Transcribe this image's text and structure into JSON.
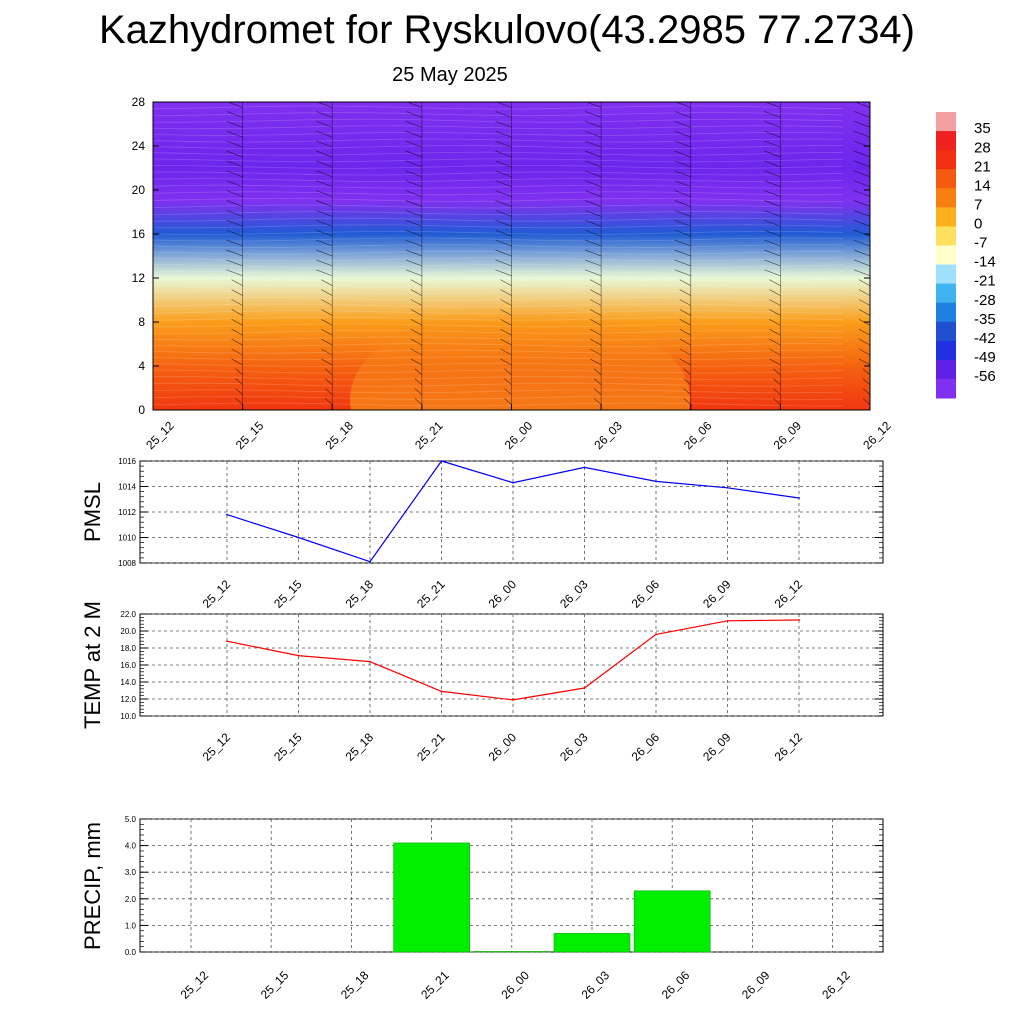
{
  "title": "Kazhydromet for Ryskulovo(43.2985 77.2734)",
  "subtitle": "25 May 2025",
  "chart_data": [
    {
      "type": "heatmap",
      "title": "",
      "xlabel": "",
      "ylabel": "",
      "x_ticks": [
        "25_12",
        "25_15",
        "25_18",
        "25_21",
        "26_00",
        "26_03",
        "26_06",
        "26_09",
        "26_12"
      ],
      "y_ticks": [
        "0",
        "4",
        "8",
        "12",
        "16",
        "20",
        "24",
        "28"
      ],
      "ylim": [
        0,
        28
      ],
      "temperature_profile": [
        {
          "level": 0,
          "value": 21
        },
        {
          "level": 4,
          "value": 14
        },
        {
          "level": 8,
          "value": 5
        },
        {
          "level": 12,
          "value": -12
        },
        {
          "level": 16,
          "value": -35
        },
        {
          "level": 19,
          "value": -56
        },
        {
          "level": 22,
          "value": -52
        },
        {
          "level": 28,
          "value": -56
        }
      ],
      "colorbar_labels": [
        "35",
        "28",
        "21",
        "14",
        "7",
        "0",
        "-7",
        "-14",
        "-21",
        "-28",
        "-35",
        "-42",
        "-49",
        "-56"
      ],
      "colorbar_colors": [
        "#f2a0a0",
        "#ee2020",
        "#f03010",
        "#f45a10",
        "#f88010",
        "#fbb020",
        "#fde060",
        "#ffffcc",
        "#a0e0ff",
        "#40b4f0",
        "#2080e0",
        "#2050d0",
        "#2030e0",
        "#6020e8",
        "#8030f0"
      ],
      "wind_barbs": "shown"
    },
    {
      "type": "line",
      "ylabel": "PMSL",
      "categories": [
        "25_12",
        "25_15",
        "25_18",
        "25_21",
        "26_00",
        "26_03",
        "26_06",
        "26_09",
        "26_12"
      ],
      "y_ticks": [
        "1008",
        "1010",
        "1012",
        "1014",
        "1016"
      ],
      "ylim": [
        1008,
        1016
      ],
      "values": [
        1011.8,
        1010.0,
        1008.1,
        1016.0,
        1014.3,
        1015.5,
        1014.4,
        1013.9,
        1013.1
      ],
      "color": "#0000ff",
      "grid": true
    },
    {
      "type": "line",
      "ylabel": "TEMP at 2 M",
      "categories": [
        "25_12",
        "25_15",
        "25_18",
        "25_21",
        "26_00",
        "26_03",
        "26_06",
        "26_09",
        "26_12"
      ],
      "y_ticks": [
        "10.0",
        "12.0",
        "14.0",
        "16.0",
        "18.0",
        "20.0",
        "22.0"
      ],
      "ylim": [
        10,
        22
      ],
      "values": [
        18.8,
        17.1,
        16.4,
        12.9,
        11.9,
        13.3,
        19.6,
        21.2,
        21.3
      ],
      "color": "#ff0000",
      "grid": true
    },
    {
      "type": "bar",
      "ylabel": "PRECIP, mm",
      "categories": [
        "25_12",
        "25_15",
        "25_18",
        "25_21",
        "26_00",
        "26_03",
        "26_06",
        "26_09",
        "26_12"
      ],
      "y_ticks": [
        "0.0",
        "1.0",
        "2.0",
        "3.0",
        "4.0",
        "5.0"
      ],
      "ylim": [
        0,
        5
      ],
      "values": [
        0,
        0,
        0,
        4.1,
        0.02,
        0.7,
        2.3,
        0,
        0
      ],
      "color": "#00ee00",
      "grid": true
    }
  ]
}
